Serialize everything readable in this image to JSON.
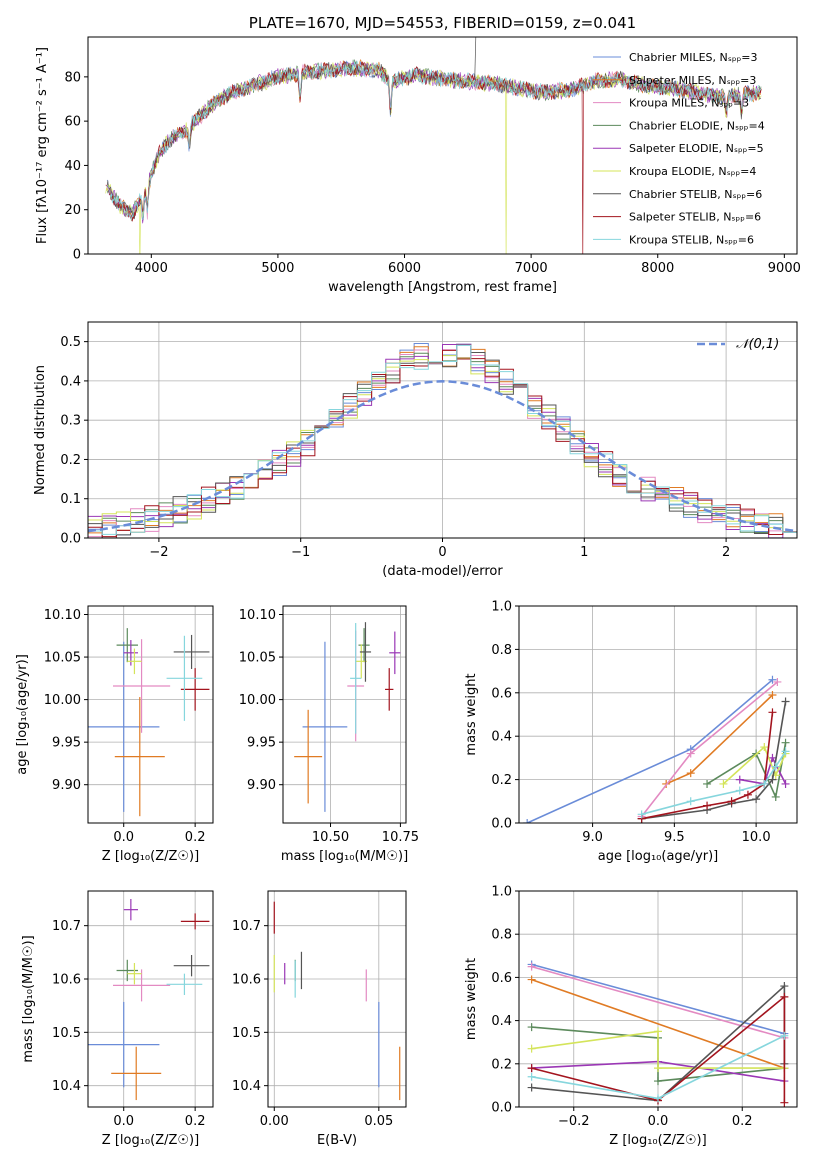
{
  "palette": [
    "#6a8cd8",
    "#e07b24",
    "#e38ac2",
    "#5c8a5c",
    "#9a37b5",
    "#d4e45a",
    "#555555",
    "#a3141e",
    "#86d6dd"
  ],
  "chart_data": [
    {
      "id": "spectrum",
      "type": "line",
      "title": "PLATE=1670, MJD=54553, FIBERID=0159, z=0.041",
      "xlabel": "wavelength [Angstrom, rest frame]",
      "ylabel": "Flux [fλ10⁻¹⁷ erg cm⁻² s⁻¹ A⁻¹]",
      "xlim": [
        3500,
        9100
      ],
      "ylim": [
        0,
        98
      ],
      "xticks": [
        4000,
        5000,
        6000,
        7000,
        8000,
        9000
      ],
      "yticks": [
        0,
        20,
        40,
        60,
        80
      ],
      "legend_location": "upper right",
      "series": [
        {
          "name": "Chabrier MILES, Nₛₚₚ=3"
        },
        {
          "name": "Salpeter MILES, Nₛₚₚ=3"
        },
        {
          "name": "Kroupa MILES, Nₛₚₚ=3"
        },
        {
          "name": "Chabrier ELODIE, Nₛₚₚ=4"
        },
        {
          "name": "Salpeter ELODIE, Nₛₚₚ=5"
        },
        {
          "name": "Kroupa ELODIE, Nₛₚₚ=4"
        },
        {
          "name": "Chabrier STELIB, Nₛₚₚ=6"
        },
        {
          "name": "Salpeter STELIB, Nₛₚₚ=6"
        },
        {
          "name": "Kroupa STELIB, Nₛₚₚ=6"
        }
      ],
      "continuum": {
        "x": [
          3650,
          3750,
          3850,
          3950,
          4050,
          4150,
          4250,
          4350,
          4450,
          4600,
          4800,
          5000,
          5200,
          5400,
          5600,
          5800,
          5900,
          6100,
          6300,
          6500,
          6700,
          6900,
          7100,
          7300,
          7500,
          7700,
          7900,
          8100,
          8300,
          8500,
          8700,
          8800
        ],
        "y": [
          30,
          22,
          18,
          28,
          44,
          52,
          55,
          60,
          66,
          72,
          76,
          80,
          82,
          83,
          84,
          83,
          78,
          81,
          79,
          78,
          77,
          75,
          73,
          74,
          78,
          79,
          76,
          75,
          73,
          71,
          72,
          73
        ]
      },
      "absorption_lines": [
        {
          "x": 3934,
          "depth": 10
        },
        {
          "x": 3969,
          "depth": 12
        },
        {
          "x": 4300,
          "depth": 8
        },
        {
          "x": 5175,
          "depth": 12
        },
        {
          "x": 5890,
          "depth": 14
        },
        {
          "x": 8542,
          "depth": 8
        },
        {
          "x": 8662,
          "depth": 8
        }
      ],
      "dropouts": [
        {
          "series": "Kroupa ELODIE, Nₛₚₚ=4",
          "x": 3910
        },
        {
          "series": "Kroupa ELODIE, Nₛₚₚ=4",
          "x": 6800
        },
        {
          "series": "Salpeter STELIB, Nₛₚₚ=6",
          "x": 7410
        }
      ]
    },
    {
      "id": "residuals",
      "type": "histogram",
      "xlabel": "(data-model)/error",
      "ylabel": "Normed distribution",
      "xlim": [
        -2.5,
        2.5
      ],
      "ylim": [
        0,
        0.55
      ],
      "xticks": [
        -2,
        -1,
        0,
        1,
        2
      ],
      "yticks": [
        0.0,
        0.1,
        0.2,
        0.3,
        0.4,
        0.5
      ],
      "bin_width": 0.1,
      "bin_start": -2.5,
      "reference_curve": {
        "name": "𝒩(0,1)",
        "mean": 0,
        "sigma": 1
      },
      "legend_location": "upper right"
    },
    {
      "id": "age_vs_Z",
      "type": "errorbar",
      "xlabel": "Z [log₁₀(Z/Z☉)]",
      "ylabel": "age  [log₁₀(age/yr)]",
      "xlim": [
        -0.1,
        0.25
      ],
      "ylim": [
        9.855,
        10.11
      ],
      "xticks": [
        0.0,
        0.2
      ],
      "yticks": [
        9.9,
        9.95,
        10.0,
        10.05,
        10.1
      ],
      "points": [
        {
          "c": 0,
          "x": 0.0,
          "y": 9.968,
          "xe": 0.1,
          "ye": 0.1
        },
        {
          "c": 1,
          "x": 0.045,
          "y": 9.933,
          "xe": 0.07,
          "ye": 0.07
        },
        {
          "c": 2,
          "x": 0.05,
          "y": 10.016,
          "xe": 0.08,
          "ye": 0.055
        },
        {
          "c": 3,
          "x": 0.01,
          "y": 10.064,
          "xe": 0.03,
          "ye": 0.02
        },
        {
          "c": 4,
          "x": 0.02,
          "y": 10.055,
          "xe": 0.02,
          "ye": 0.015
        },
        {
          "c": 5,
          "x": 0.03,
          "y": 10.045,
          "xe": 0.02,
          "ye": 0.015
        },
        {
          "c": 6,
          "x": 0.19,
          "y": 10.056,
          "xe": 0.05,
          "ye": 0.02
        },
        {
          "c": 7,
          "x": 0.2,
          "y": 10.012,
          "xe": 0.04,
          "ye": 0.025
        },
        {
          "c": 8,
          "x": 0.17,
          "y": 10.025,
          "xe": 0.05,
          "ye": 0.05
        }
      ]
    },
    {
      "id": "age_vs_mass",
      "type": "errorbar",
      "xlabel": "mass [log₁₀(M/M☉)]",
      "ylabel": "",
      "xlim": [
        10.33,
        10.77
      ],
      "ylim": [
        9.855,
        10.11
      ],
      "xticks": [
        10.5,
        10.75
      ],
      "yticks": [
        9.9,
        9.95,
        10.0,
        10.05,
        10.1
      ],
      "points": [
        {
          "c": 0,
          "x": 10.48,
          "y": 9.968,
          "xe": 0.08,
          "ye": 0.1
        },
        {
          "c": 1,
          "x": 10.42,
          "y": 9.933,
          "xe": 0.05,
          "ye": 0.055
        },
        {
          "c": 2,
          "x": 10.59,
          "y": 10.016,
          "xe": 0.03,
          "ye": 0.065
        },
        {
          "c": 3,
          "x": 10.62,
          "y": 10.064,
          "xe": 0.02,
          "ye": 0.02
        },
        {
          "c": 4,
          "x": 10.73,
          "y": 10.055,
          "xe": 0.02,
          "ye": 0.025
        },
        {
          "c": 5,
          "x": 10.61,
          "y": 10.045,
          "xe": 0.02,
          "ye": 0.02
        },
        {
          "c": 6,
          "x": 10.625,
          "y": 10.056,
          "xe": 0.02,
          "ye": 0.035
        },
        {
          "c": 7,
          "x": 10.71,
          "y": 10.012,
          "xe": 0.015,
          "ye": 0.025
        },
        {
          "c": 8,
          "x": 10.59,
          "y": 10.025,
          "xe": 0.02,
          "ye": 0.065
        }
      ]
    },
    {
      "id": "weight_vs_age",
      "type": "line",
      "xlabel": "age  [log₁₀(age/yr)]",
      "ylabel": "mass weight",
      "xlim": [
        8.55,
        10.25
      ],
      "ylim": [
        0.0,
        1.0
      ],
      "xticks": [
        9.0,
        9.5,
        10.0
      ],
      "yticks": [
        0.0,
        0.2,
        0.4,
        0.6,
        0.8,
        1.0
      ],
      "series": [
        {
          "c": 0,
          "x": [
            8.6,
            9.6,
            10.1
          ],
          "y": [
            0.0,
            0.34,
            0.66
          ]
        },
        {
          "c": 1,
          "x": [
            9.45,
            9.6,
            10.1
          ],
          "y": [
            0.18,
            0.23,
            0.59
          ]
        },
        {
          "c": 2,
          "x": [
            9.3,
            9.6,
            10.13
          ],
          "y": [
            0.03,
            0.32,
            0.65
          ]
        },
        {
          "c": 3,
          "x": [
            9.7,
            10.0,
            10.12,
            10.18
          ],
          "y": [
            0.18,
            0.32,
            0.12,
            0.37
          ]
        },
        {
          "c": 4,
          "x": [
            9.9,
            10.05,
            10.1,
            10.18
          ],
          "y": [
            0.2,
            0.18,
            0.3,
            0.18
          ]
        },
        {
          "c": 5,
          "x": [
            9.8,
            10.05,
            10.12,
            10.18
          ],
          "y": [
            0.18,
            0.35,
            0.22,
            0.32
          ]
        },
        {
          "c": 6,
          "x": [
            9.3,
            9.7,
            9.85,
            10.0,
            10.1,
            10.18
          ],
          "y": [
            0.02,
            0.06,
            0.09,
            0.11,
            0.2,
            0.56
          ]
        },
        {
          "c": 7,
          "x": [
            9.3,
            9.7,
            9.85,
            9.95,
            10.05,
            10.1
          ],
          "y": [
            0.02,
            0.08,
            0.1,
            0.13,
            0.18,
            0.51
          ]
        },
        {
          "c": 8,
          "x": [
            9.3,
            9.6,
            9.9,
            10.05,
            10.12,
            10.18
          ],
          "y": [
            0.04,
            0.1,
            0.15,
            0.18,
            0.26,
            0.33
          ]
        }
      ]
    },
    {
      "id": "mass_vs_Z",
      "type": "errorbar",
      "xlabel": "Z [log₁₀(Z/Z☉)]",
      "ylabel": "mass [log₁₀(M/M☉)]",
      "xlim": [
        -0.1,
        0.25
      ],
      "ylim": [
        10.36,
        10.765
      ],
      "xticks": [
        0.0,
        0.2
      ],
      "yticks": [
        10.4,
        10.5,
        10.6,
        10.7
      ],
      "points": [
        {
          "c": 0,
          "x": 0.0,
          "y": 10.477,
          "xe": 0.1,
          "ye": 0.08
        },
        {
          "c": 1,
          "x": 0.035,
          "y": 10.423,
          "xe": 0.07,
          "ye": 0.05
        },
        {
          "c": 2,
          "x": 0.05,
          "y": 10.588,
          "xe": 0.08,
          "ye": 0.03
        },
        {
          "c": 3,
          "x": 0.01,
          "y": 10.616,
          "xe": 0.03,
          "ye": 0.02
        },
        {
          "c": 4,
          "x": 0.02,
          "y": 10.73,
          "xe": 0.02,
          "ye": 0.02
        },
        {
          "c": 5,
          "x": 0.03,
          "y": 10.61,
          "xe": 0.02,
          "ye": 0.02
        },
        {
          "c": 6,
          "x": 0.19,
          "y": 10.625,
          "xe": 0.05,
          "ye": 0.02
        },
        {
          "c": 7,
          "x": 0.2,
          "y": 10.708,
          "xe": 0.04,
          "ye": 0.015
        },
        {
          "c": 8,
          "x": 0.17,
          "y": 10.59,
          "xe": 0.05,
          "ye": 0.02
        }
      ]
    },
    {
      "id": "mass_vs_ebv",
      "type": "errorbar",
      "xlabel": "E(B-V)",
      "ylabel": "",
      "xlim": [
        -0.003,
        0.063
      ],
      "ylim": [
        10.36,
        10.765
      ],
      "xticks": [
        0.0,
        0.05
      ],
      "yticks": [
        10.4,
        10.5,
        10.6,
        10.7
      ],
      "points": [
        {
          "c": 0,
          "x": 0.05,
          "y": 10.477,
          "xe": 0.0,
          "ye": 0.08
        },
        {
          "c": 1,
          "x": 0.06,
          "y": 10.423,
          "xe": 0.0,
          "ye": 0.05
        },
        {
          "c": 2,
          "x": 0.044,
          "y": 10.588,
          "xe": 0.0,
          "ye": 0.03
        },
        {
          "c": 3,
          "x": 0.01,
          "y": 10.616,
          "xe": 0.0,
          "ye": 0.02
        },
        {
          "c": 4,
          "x": 0.005,
          "y": 10.61,
          "xe": 0.0,
          "ye": 0.02
        },
        {
          "c": 5,
          "x": 0.0,
          "y": 10.61,
          "xe": 0.0,
          "ye": 0.035
        },
        {
          "c": 6,
          "x": 0.013,
          "y": 10.616,
          "xe": 0.0,
          "ye": 0.035
        },
        {
          "c": 7,
          "x": 0.0,
          "y": 10.715,
          "xe": 0.0,
          "ye": 0.03
        },
        {
          "c": 8,
          "x": 0.01,
          "y": 10.6,
          "xe": 0.0,
          "ye": 0.035
        }
      ]
    },
    {
      "id": "weight_vs_Z",
      "type": "line",
      "xlabel": "Z [log₁₀(Z/Z☉)]",
      "ylabel": "mass weight",
      "xlim": [
        -0.33,
        0.33
      ],
      "ylim": [
        0.0,
        1.0
      ],
      "xticks": [
        -0.2,
        0.0,
        0.2
      ],
      "yticks": [
        0.0,
        0.2,
        0.4,
        0.6,
        0.8,
        1.0
      ],
      "series": [
        {
          "c": 0,
          "x": [
            -0.3,
            0.3
          ],
          "y": [
            0.66,
            0.34
          ]
        },
        {
          "c": 1,
          "x": [
            -0.3,
            0.3
          ],
          "y": [
            0.59,
            0.18
          ]
        },
        {
          "c": 2,
          "x": [
            -0.3,
            0.3
          ],
          "y": [
            0.65,
            0.32
          ]
        },
        {
          "c": 3,
          "x": [
            -0.3,
            0.0,
            0.0,
            0.3
          ],
          "y": [
            0.37,
            0.32,
            0.12,
            0.18
          ]
        },
        {
          "c": 4,
          "x": [
            -0.3,
            0.0,
            0.3
          ],
          "y": [
            0.18,
            0.21,
            0.12
          ]
        },
        {
          "c": 5,
          "x": [
            -0.3,
            0.0,
            0.0,
            0.3
          ],
          "y": [
            0.27,
            0.35,
            0.18,
            0.18
          ]
        },
        {
          "c": 6,
          "x": [
            -0.3,
            0.0,
            0.3,
            0.3
          ],
          "y": [
            0.09,
            0.03,
            0.56,
            0.2
          ]
        },
        {
          "c": 7,
          "x": [
            -0.3,
            0.0,
            0.3,
            0.3
          ],
          "y": [
            0.18,
            0.03,
            0.51,
            0.02
          ]
        },
        {
          "c": 8,
          "x": [
            -0.3,
            0.0,
            0.3
          ],
          "y": [
            0.14,
            0.04,
            0.33
          ]
        }
      ]
    }
  ]
}
